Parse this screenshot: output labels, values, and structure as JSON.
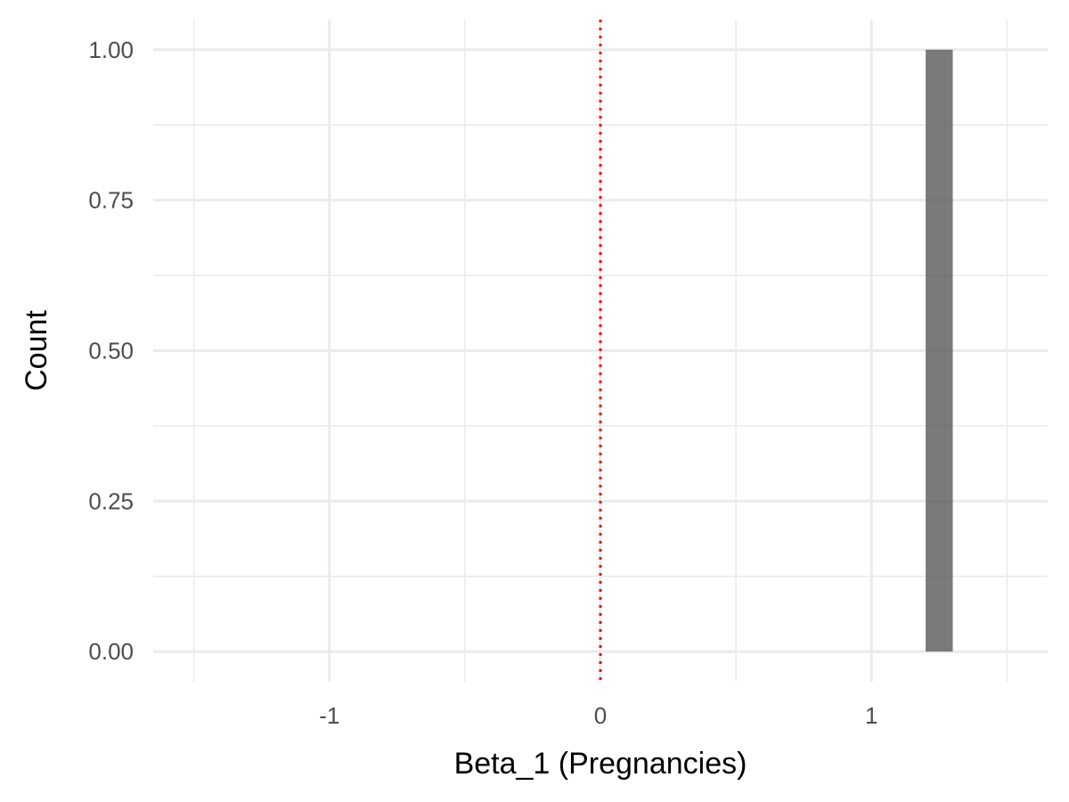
{
  "chart_data": {
    "type": "bar",
    "title": "",
    "xlabel": "Beta_1 (Pregnancies)",
    "ylabel": "Count",
    "xlim": [
      -1.5,
      1.5
    ],
    "ylim": [
      0,
      1
    ],
    "x_ticks": [
      -1,
      0,
      1
    ],
    "x_tick_labels": [
      "-1",
      "0",
      "1"
    ],
    "y_ticks": [
      0,
      0.25,
      0.5,
      0.75,
      1
    ],
    "y_tick_labels": [
      "0.00",
      "0.25",
      "0.50",
      "0.75",
      "1.00"
    ],
    "bins": [
      {
        "x0": 1.2,
        "x1": 1.3,
        "count": 1
      }
    ],
    "reference_line": {
      "x": 0,
      "style": "dotted",
      "color": "#ff0000"
    },
    "bar_color": "#595959",
    "grid": true,
    "legend": "none"
  }
}
